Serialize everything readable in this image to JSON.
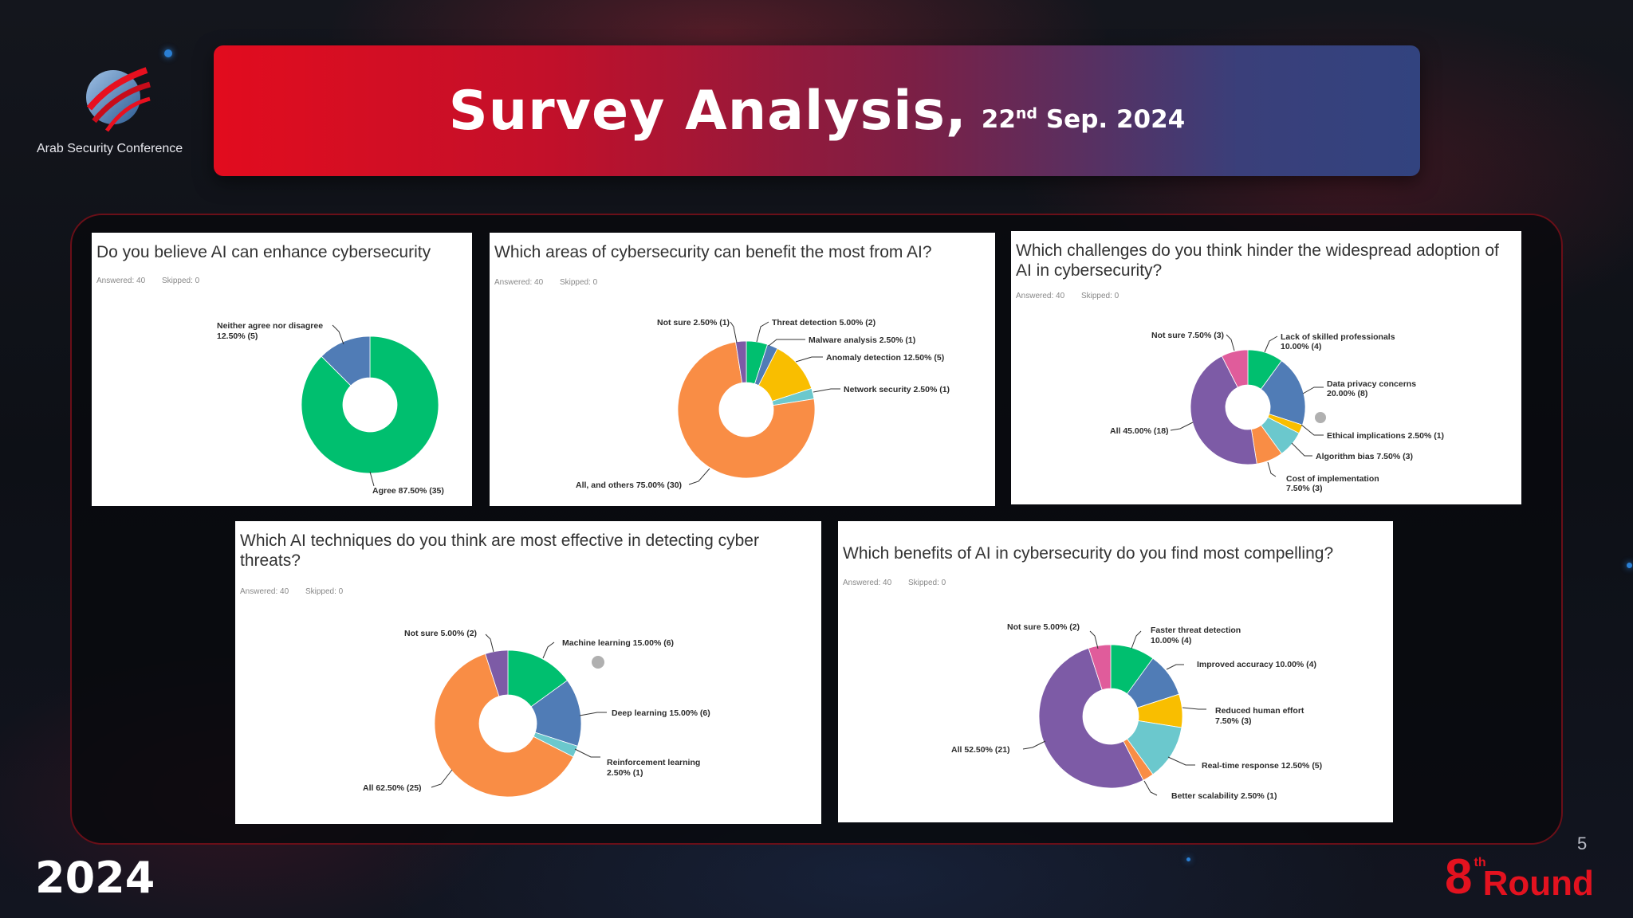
{
  "header": {
    "logo_text": "Arab Security Conference",
    "title": "Survey Analysis,",
    "date_day": "22",
    "date_suffix": "nd",
    "date_rest": " Sep. 2024"
  },
  "colors": {
    "green": "#00bf6f",
    "blue": "#507cb6",
    "orange": "#f98d45",
    "yellow": "#f9be00",
    "teal": "#6bc8cd",
    "purple": "#7d5ba6",
    "pink": "#e05c9b",
    "accent_red": "#e3121f"
  },
  "cards": [
    {
      "question": "Do you believe AI can enhance cybersecurity",
      "answered": "Answered: 40",
      "skipped": "Skipped: 0",
      "chart_data": {
        "type": "pie",
        "slices": [
          {
            "label": "Agree 87.50% (35)",
            "value": 87.5,
            "color": "#00bf6f"
          },
          {
            "label": "Neither agree nor disagree 12.50% (5)",
            "value": 12.5,
            "color": "#507cb6"
          }
        ]
      }
    },
    {
      "question": "Which areas of cybersecurity can benefit the most from AI?",
      "answered": "Answered: 40",
      "skipped": "Skipped: 0",
      "chart_data": {
        "type": "pie",
        "slices": [
          {
            "label": "Threat detection 5.00% (2)",
            "value": 5.0,
            "color": "#00bf6f"
          },
          {
            "label": "Malware analysis 2.50% (1)",
            "value": 2.5,
            "color": "#507cb6"
          },
          {
            "label": "Anomaly detection 12.50% (5)",
            "value": 12.5,
            "color": "#f9be00"
          },
          {
            "label": "Network security 2.50% (1)",
            "value": 2.5,
            "color": "#6bc8cd"
          },
          {
            "label": "All, and others 75.00% (30)",
            "value": 75.0,
            "color": "#f98d45"
          },
          {
            "label": "Not sure 2.50% (1)",
            "value": 2.5,
            "color": "#7d5ba6"
          }
        ]
      }
    },
    {
      "question": "Which challenges do you think hinder the widespread adoption of AI in cybersecurity?",
      "answered": "Answered: 40",
      "skipped": "Skipped: 0",
      "chart_data": {
        "type": "pie",
        "slices": [
          {
            "label": "Lack of skilled professionals 10.00% (4)",
            "value": 10.0,
            "color": "#00bf6f"
          },
          {
            "label": "Data privacy concerns 20.00% (8)",
            "value": 20.0,
            "color": "#507cb6"
          },
          {
            "label": "Ethical implications 2.50% (1)",
            "value": 2.5,
            "color": "#f9be00"
          },
          {
            "label": "Algorithm bias 7.50% (3)",
            "value": 7.5,
            "color": "#6bc8cd"
          },
          {
            "label": "Cost of implementation 7.50% (3)",
            "value": 7.5,
            "color": "#f98d45"
          },
          {
            "label": "All 45.00% (18)",
            "value": 45.0,
            "color": "#7d5ba6"
          },
          {
            "label": "Not sure 7.50% (3)",
            "value": 7.5,
            "color": "#e05c9b"
          }
        ]
      }
    },
    {
      "question": "Which AI techniques do you think are most effective in detecting cyber threats?",
      "answered": "Answered: 40",
      "skipped": "Skipped: 0",
      "chart_data": {
        "type": "pie",
        "slices": [
          {
            "label": "Machine learning 15.00% (6)",
            "value": 15.0,
            "color": "#00bf6f"
          },
          {
            "label": "Deep learning 15.00% (6)",
            "value": 15.0,
            "color": "#507cb6"
          },
          {
            "label": "Reinforcement learning 2.50% (1)",
            "value": 2.5,
            "color": "#6bc8cd"
          },
          {
            "label": "All 62.50% (25)",
            "value": 62.5,
            "color": "#f98d45"
          },
          {
            "label": "Not sure 5.00% (2)",
            "value": 5.0,
            "color": "#7d5ba6"
          }
        ]
      }
    },
    {
      "question": "Which benefits of AI in cybersecurity do you find most compelling?",
      "answered": "Answered: 40",
      "skipped": "Skipped: 0",
      "chart_data": {
        "type": "pie",
        "slices": [
          {
            "label": "Faster threat detection 10.00% (4)",
            "value": 10.0,
            "color": "#00bf6f"
          },
          {
            "label": "Improved accuracy 10.00% (4)",
            "value": 10.0,
            "color": "#507cb6"
          },
          {
            "label": "Reduced human effort 7.50% (3)",
            "value": 7.5,
            "color": "#f9be00"
          },
          {
            "label": "Real-time response 12.50% (5)",
            "value": 12.5,
            "color": "#6bc8cd"
          },
          {
            "label": "Better scalability 2.50% (1)",
            "value": 2.5,
            "color": "#f98d45"
          },
          {
            "label": "All 52.50% (21)",
            "value": 52.5,
            "color": "#7d5ba6"
          },
          {
            "label": "Not sure 5.00% (2)",
            "value": 5.0,
            "color": "#e05c9b"
          }
        ]
      }
    }
  ],
  "footer": {
    "year": "2024",
    "page_number": "5",
    "round_number": "8",
    "round_suffix": "th",
    "round_word": "Round"
  }
}
